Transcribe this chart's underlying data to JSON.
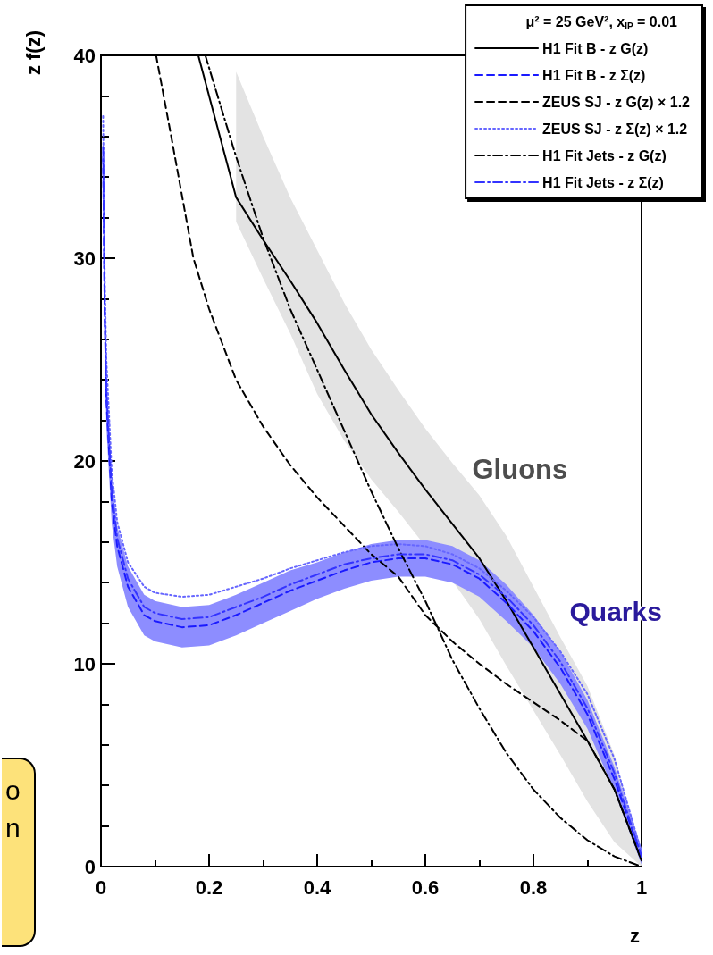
{
  "chart_data": {
    "type": "line",
    "xlabel": "z",
    "ylabel": "z f(z)",
    "legend_title": "μ² = 25 GeV², x$_{IP}$ = 0.01",
    "xlim": [
      0,
      1
    ],
    "ylim": [
      0,
      40
    ],
    "xticks": [
      0,
      0.2,
      0.4,
      0.6,
      0.8,
      1
    ],
    "yticks": [
      0,
      10,
      20,
      30,
      40
    ],
    "grid": false,
    "legend": "top right",
    "annotations": [
      "Gluons",
      "Quarks",
      "o",
      "n"
    ],
    "series": [
      {
        "name": "H1 Fit B - z G(z)",
        "color": "#000000",
        "line_style": "solid",
        "x": [
          0.18,
          0.25,
          0.3,
          0.35,
          0.4,
          0.45,
          0.5,
          0.55,
          0.6,
          0.65,
          0.7,
          0.75,
          0.8,
          0.85,
          0.9,
          0.95,
          1
        ],
        "values": [
          40,
          33.0,
          30.9,
          28.9,
          26.8,
          24.5,
          22.3,
          20.4,
          18.6,
          16.9,
          15.2,
          13.1,
          10.8,
          8.5,
          6.2,
          3.8,
          0.3
        ],
        "lower": [
          null,
          31.8,
          29.0,
          26.3,
          23.3,
          21.0,
          19.1,
          17.5,
          15.8,
          14.1,
          12.2,
          9.9,
          7.7,
          5.5,
          3.2,
          1.2,
          0
        ],
        "upper": [
          null,
          39.2,
          36,
          33,
          30.4,
          27.8,
          25.5,
          23.5,
          21.6,
          19.9,
          18.3,
          16.3,
          13.8,
          11.3,
          8.9,
          5.5,
          0.5
        ]
      },
      {
        "name": "H1 Fit B - z Σ(z)",
        "color": "#1a1aff",
        "line_style": "dashed",
        "x": [
          0.004,
          0.007,
          0.01,
          0.02,
          0.03,
          0.05,
          0.08,
          0.1,
          0.15,
          0.2,
          0.25,
          0.3,
          0.35,
          0.4,
          0.45,
          0.5,
          0.55,
          0.6,
          0.65,
          0.7,
          0.75,
          0.8,
          0.85,
          0.9,
          0.95,
          1
        ],
        "values": [
          35,
          27,
          23,
          18,
          15.8,
          13.8,
          12.4,
          12.1,
          11.8,
          11.9,
          12.4,
          13.0,
          13.6,
          14.1,
          14.6,
          15.0,
          15.2,
          15.2,
          14.9,
          14.2,
          13.0,
          11.6,
          9.8,
          7.5,
          4.3,
          0.5
        ],
        "lower": [
          33,
          25.5,
          21.7,
          16.9,
          14.8,
          12.8,
          11.4,
          11.1,
          10.8,
          10.9,
          11.4,
          12.0,
          12.6,
          13.2,
          13.7,
          14.1,
          14.3,
          14.3,
          14.0,
          13.3,
          12.1,
          10.8,
          9.0,
          6.8,
          3.7,
          0.1
        ],
        "upper": [
          37,
          28.5,
          24.3,
          19.1,
          16.8,
          14.8,
          13.4,
          13.1,
          12.8,
          12.9,
          13.4,
          14.0,
          14.6,
          15.0,
          15.5,
          15.9,
          16.1,
          16.1,
          15.8,
          15.1,
          13.9,
          12.4,
          10.6,
          8.2,
          4.9,
          0.9
        ]
      },
      {
        "name": "ZEUS SJ - z G(z) × 1.2",
        "color": "#000000",
        "line_style": "dashed",
        "x": [
          0.102,
          0.13,
          0.171,
          0.2,
          0.25,
          0.3,
          0.35,
          0.4,
          0.45,
          0.5,
          0.55,
          0.6,
          0.65,
          0.7,
          0.75,
          0.8,
          0.85,
          0.9,
          0.95,
          1
        ],
        "values": [
          40,
          36,
          30,
          27.5,
          24,
          21.7,
          19.8,
          18.2,
          16.8,
          15.4,
          14.3,
          12.4,
          11.1,
          10.0,
          9.0,
          8.1,
          7.2,
          6.2,
          3.8,
          0.3
        ]
      },
      {
        "name": "ZEUS SJ - z Σ(z) × 1.2",
        "color": "#6666ff",
        "line_style": "dotted",
        "x": [
          0.004,
          0.007,
          0.01,
          0.02,
          0.03,
          0.05,
          0.08,
          0.1,
          0.15,
          0.2,
          0.25,
          0.3,
          0.35,
          0.4,
          0.45,
          0.5,
          0.55,
          0.6,
          0.65,
          0.7,
          0.75,
          0.8,
          0.85,
          0.9,
          0.95,
          1
        ],
        "values": [
          37,
          29,
          25,
          19.5,
          17,
          15,
          13.8,
          13.5,
          13.3,
          13.4,
          13.8,
          14.2,
          14.7,
          15.1,
          15.5,
          15.8,
          15.9,
          15.8,
          15.4,
          14.7,
          13.6,
          12.3,
          10.6,
          8.5,
          5.3,
          0.7
        ]
      },
      {
        "name": "H1 Fit Jets - z G(z)",
        "color": "#000000",
        "line_style": "dashdot",
        "x": [
          0.193,
          0.25,
          0.3,
          0.35,
          0.4,
          0.45,
          0.5,
          0.55,
          0.6,
          0.65,
          0.7,
          0.75,
          0.8,
          0.85,
          0.9,
          0.95,
          1
        ],
        "values": [
          40,
          35.0,
          31.0,
          27.5,
          24.5,
          21.5,
          18.5,
          15.7,
          13.1,
          10.2,
          7.8,
          5.6,
          3.8,
          2.4,
          1.3,
          0.5,
          0
        ]
      },
      {
        "name": "H1 Fit Jets - z Σ(z)",
        "color": "#3333ff",
        "line_style": "dashdot",
        "x": [
          0.004,
          0.007,
          0.01,
          0.02,
          0.03,
          0.05,
          0.08,
          0.1,
          0.15,
          0.2,
          0.25,
          0.3,
          0.35,
          0.4,
          0.45,
          0.5,
          0.55,
          0.6,
          0.65,
          0.7,
          0.75,
          0.8,
          0.85,
          0.9,
          0.95,
          1
        ],
        "values": [
          35.5,
          27.5,
          23.5,
          18.5,
          16.2,
          14.2,
          12.8,
          12.5,
          12.2,
          12.3,
          12.8,
          13.3,
          13.9,
          14.4,
          14.9,
          15.2,
          15.4,
          15.4,
          15.1,
          14.4,
          13.3,
          11.9,
          10.1,
          7.8,
          4.6,
          0.5
        ]
      }
    ]
  }
}
